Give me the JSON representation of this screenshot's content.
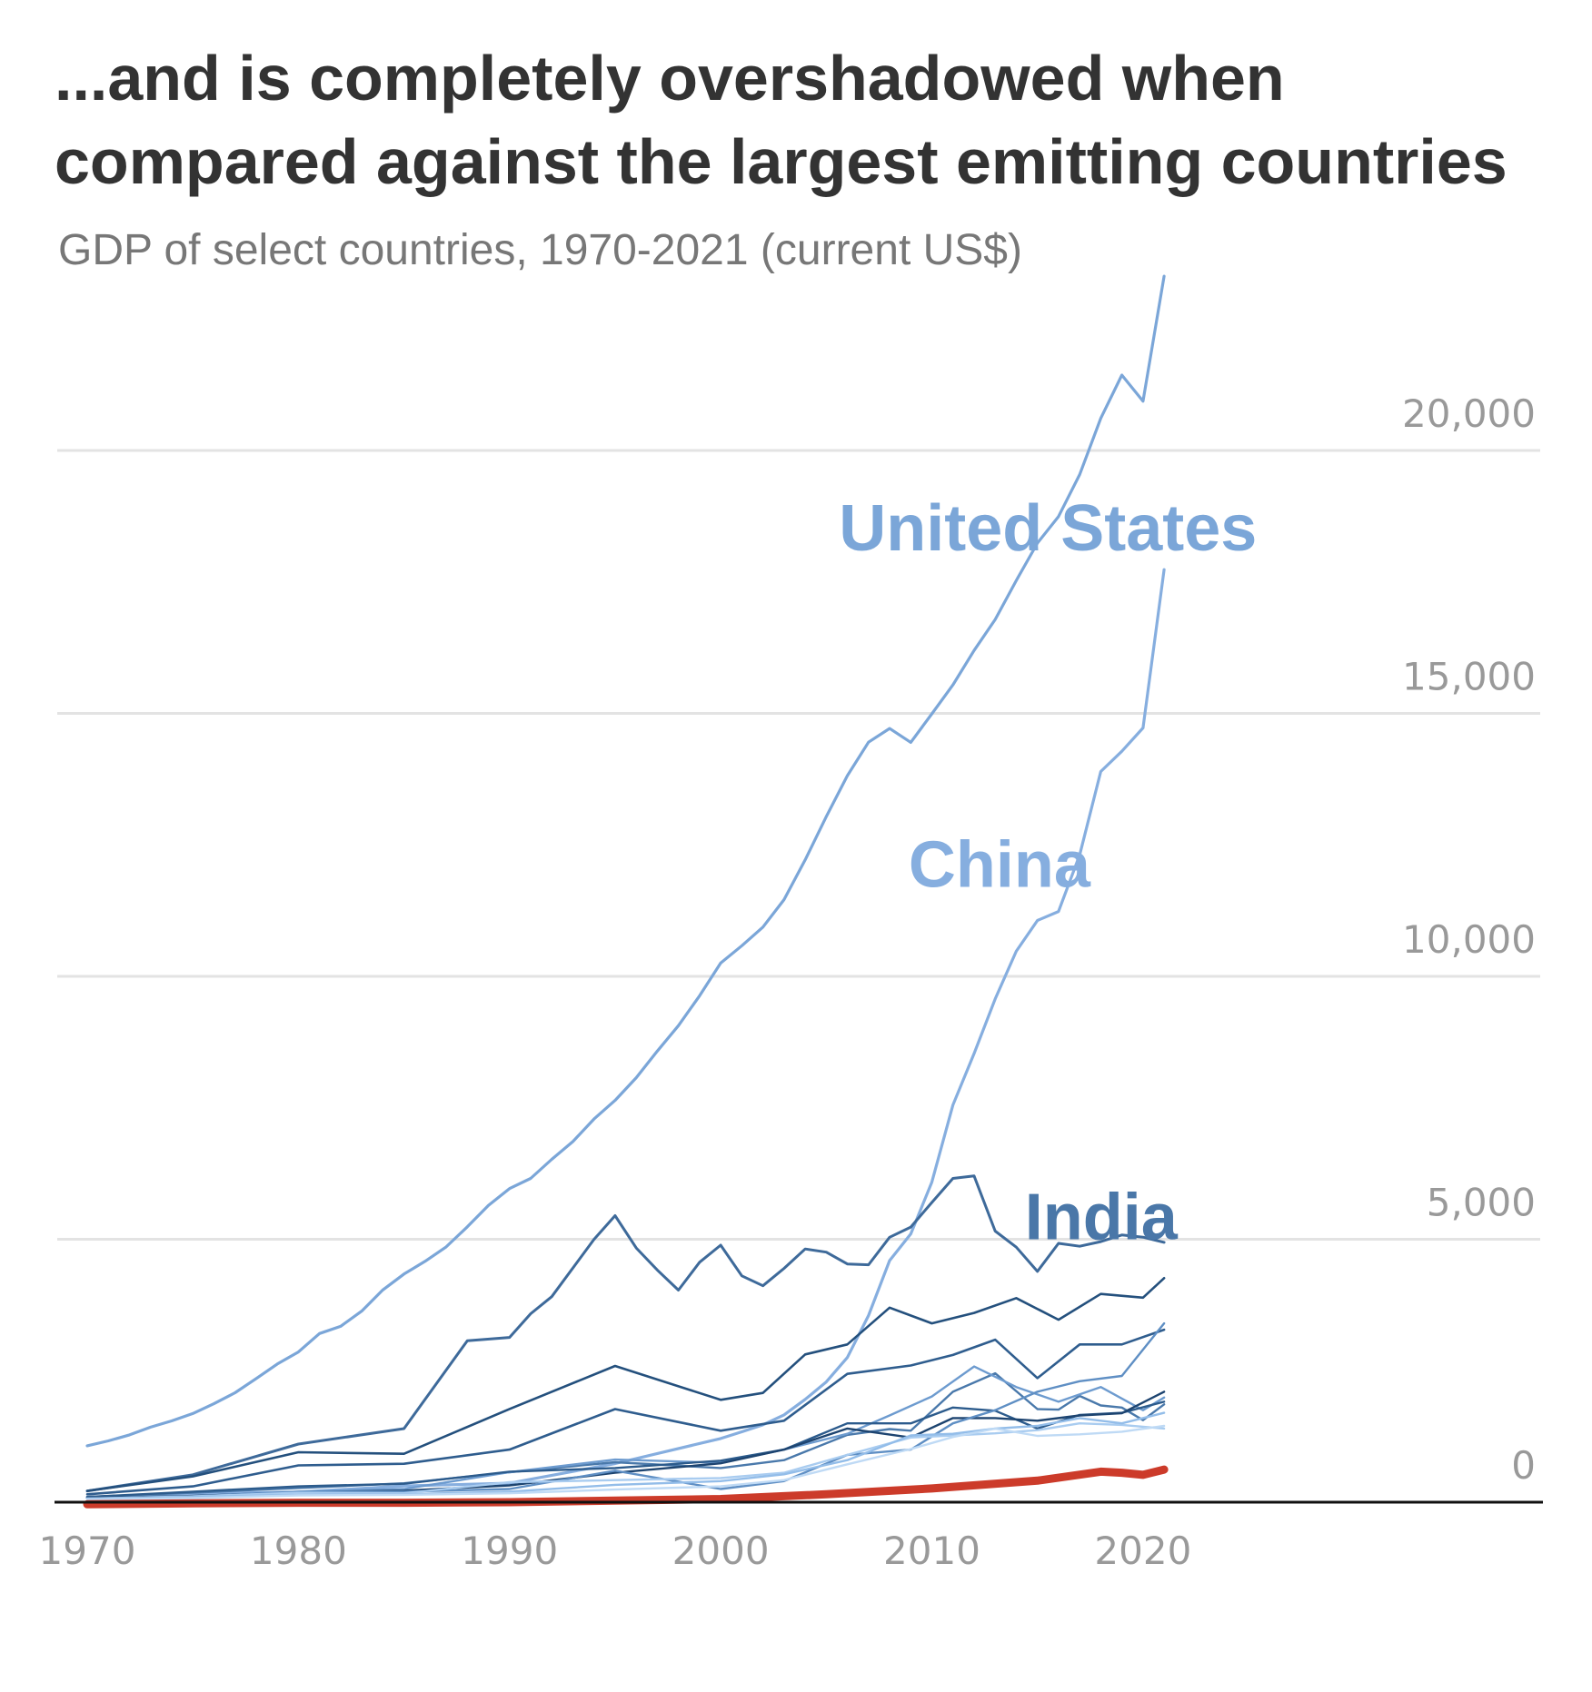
{
  "chart_data": {
    "type": "line",
    "title": "...and is completely overshadowed when compared against the largest emitting countries",
    "subtitle": "GDP of select countries, 1970-2021 (current US$)",
    "xlim": [
      1969,
      2029
    ],
    "ylim": [
      -700,
      23000
    ],
    "x_ticks": [
      1970,
      1980,
      1990,
      2000,
      2010,
      2020
    ],
    "x_tick_labels": [
      "1970",
      "1980",
      "1990",
      "2000",
      "2010",
      "2020"
    ],
    "y_ticks": [
      0,
      5000,
      10000,
      15000,
      20000
    ],
    "y_tick_labels": [
      "0",
      "5,000",
      "10,000",
      "15,000",
      "20,000"
    ],
    "grid": true,
    "labeled_series": [
      {
        "label": "United States",
        "color": "#7ba6d8",
        "text_x": 2005.6,
        "text_y": 18100
      },
      {
        "label": "China",
        "color": "#86aedf",
        "text_x": 2008.9,
        "text_y": 11700
      },
      {
        "label": "India",
        "color": "#4a77a8",
        "text_x": 2014.4,
        "text_y": 5000
      }
    ],
    "series": [
      {
        "color": "#7ba6d8",
        "width": 3.2,
        "x": [
          1970,
          1971,
          1972,
          1973,
          1974,
          1975,
          1976,
          1977,
          1978,
          1979,
          1980,
          1981,
          1982,
          1983,
          1984,
          1985,
          1986,
          1987,
          1988,
          1989,
          1990,
          1991,
          1992,
          1993,
          1994,
          1995,
          1996,
          1997,
          1998,
          1999,
          2000,
          2001,
          2002,
          2003,
          2004,
          2005,
          2006,
          2007,
          2008,
          2009,
          2010,
          2011,
          2012,
          2013,
          2014,
          2015,
          2016,
          2017,
          2018,
          2019,
          2020,
          2021
        ],
        "y": [
          1073,
          1165,
          1280,
          1426,
          1545,
          1685,
          1873,
          2081,
          2351,
          2627,
          2857,
          3207,
          3344,
          3634,
          4037,
          4339,
          4580,
          4855,
          5236,
          5642,
          5963,
          6158,
          6520,
          6859,
          7287,
          7640,
          8073,
          8578,
          9063,
          9631,
          10252,
          10582,
          10936,
          11458,
          12214,
          13037,
          13815,
          14452,
          14713,
          14449,
          14992,
          15543,
          16197,
          16785,
          17527,
          18238,
          18745,
          19543,
          20612,
          21433,
          20937,
          23315
        ]
      },
      {
        "color": "#86aedf",
        "width": 3.2,
        "x": [
          1970,
          1975,
          1980,
          1985,
          1990,
          1995,
          2000,
          2001,
          2002,
          2003,
          2004,
          2005,
          2006,
          2007,
          2008,
          2009,
          2010,
          2011,
          2012,
          2013,
          2014,
          2015,
          2016,
          2017,
          2018,
          2019,
          2020,
          2021
        ],
        "y": [
          93,
          164,
          191,
          309,
          361,
          734,
          1211,
          1339,
          1471,
          1660,
          1955,
          2286,
          2752,
          3550,
          4594,
          5102,
          6087,
          7552,
          8532,
          9570,
          10476,
          11062,
          11233,
          12310,
          13895,
          14280,
          14723,
          17734
        ]
      },
      {
        "color": "#3e6a9a",
        "width": 3.0,
        "x": [
          1970,
          1975,
          1980,
          1985,
          1988,
          1990,
          1991,
          1992,
          1993,
          1994,
          1995,
          1996,
          1997,
          1998,
          1999,
          2000,
          2001,
          2002,
          2003,
          2004,
          2005,
          2006,
          2007,
          2008,
          2009,
          2010,
          2011,
          2012,
          2013,
          2014,
          2015,
          2016,
          2017,
          2018,
          2019,
          2020,
          2021
        ],
        "y": [
          213,
          522,
          1105,
          1399,
          3071,
          3133,
          3584,
          3909,
          4454,
          4999,
          5449,
          4834,
          4415,
          4032,
          4563,
          4888,
          4304,
          4115,
          4446,
          4815,
          4755,
          4530,
          4515,
          5038,
          5231,
          5700,
          6157,
          6203,
          5155,
          4850,
          4389,
          4923,
          4867,
          4955,
          5082,
          5040,
          4941
        ]
      },
      {
        "color": "#24507d",
        "width": 2.6,
        "x": [
          1970,
          1975,
          1980,
          1985,
          1990,
          1995,
          2000,
          2002,
          2004,
          2006,
          2008,
          2010,
          2012,
          2014,
          2016,
          2018,
          2020,
          2021
        ],
        "y": [
          215,
          490,
          950,
          920,
          1772,
          2590,
          1947,
          2078,
          2810,
          3000,
          3700,
          3400,
          3600,
          3880,
          3470,
          3960,
          3890,
          4260
        ]
      },
      {
        "color": "#2f5d8e",
        "width": 2.6,
        "x": [
          1970,
          1975,
          1980,
          1985,
          1990,
          1995,
          2000,
          2003,
          2006,
          2009,
          2011,
          2013,
          2015,
          2017,
          2019,
          2021
        ],
        "y": [
          150,
          300,
          700,
          730,
          1000,
          1770,
          1360,
          1550,
          2440,
          2600,
          2800,
          3090,
          2360,
          3000,
          3000,
          3280
        ]
      },
      {
        "color": "#4a79ab",
        "width": 2.4,
        "x": [
          1970,
          1975,
          1980,
          1985,
          1990,
          1995,
          2000,
          2003,
          2006,
          2008,
          2009,
          2011,
          2013,
          2015,
          2016,
          2017,
          2018,
          2019,
          2020,
          2021
        ],
        "y": [
          100,
          180,
          270,
          360,
          570,
          760,
          650,
          800,
          1280,
          1390,
          1360,
          2100,
          2450,
          1770,
          1760,
          2020,
          1840,
          1800,
          1560,
          1860
        ]
      },
      {
        "color": "#6d9bcf",
        "width": 2.4,
        "x": [
          1970,
          1975,
          1980,
          1985,
          1990,
          1995,
          2000,
          2003,
          2006,
          2008,
          2010,
          2012,
          2014,
          2016,
          2018,
          2020,
          2021
        ],
        "y": [
          75,
          120,
          200,
          250,
          570,
          810,
          750,
          1000,
          1300,
          1650,
          2010,
          2580,
          2190,
          1910,
          2190,
          1750,
          1990
        ]
      },
      {
        "color": "#2c5b8c",
        "width": 2.4,
        "x": [
          1970,
          1975,
          1980,
          1985,
          1990,
          1995,
          2000,
          2003,
          2006,
          2009,
          2011,
          2013,
          2015,
          2017,
          2019,
          2021
        ],
        "y": [
          100,
          200,
          300,
          350,
          580,
          650,
          790,
          1000,
          1500,
          1500,
          1800,
          1740,
          1400,
          1660,
          1700,
          1910
        ]
      },
      {
        "color": "#1d4470",
        "width": 2.4,
        "x": [
          1970,
          1975,
          1980,
          1985,
          1990,
          1995,
          2000,
          2003,
          2006,
          2009,
          2011,
          2013,
          2015,
          2017,
          2019,
          2021
        ],
        "y": [
          80,
          120,
          190,
          220,
          320,
          560,
          740,
          1000,
          1400,
          1230,
          1600,
          1600,
          1550,
          1650,
          1690,
          2100
        ]
      },
      {
        "color": "#5f8fc4",
        "width": 2.4,
        "x": [
          1970,
          1975,
          1980,
          1985,
          1990,
          1995,
          2000,
          2003,
          2006,
          2009,
          2011,
          2013,
          2015,
          2017,
          2019,
          2021
        ],
        "y": [
          70,
          110,
          200,
          200,
          250,
          600,
          250,
          400,
          900,
          1000,
          1500,
          1750,
          2100,
          2300,
          2400,
          3400
        ]
      },
      {
        "color": "#a9ccf0",
        "width": 2.4,
        "x": [
          1970,
          1975,
          1980,
          1985,
          1990,
          1995,
          2000,
          2003,
          2006,
          2009,
          2011,
          2013,
          2015,
          2017,
          2019,
          2021
        ],
        "y": [
          70,
          110,
          180,
          170,
          380,
          420,
          460,
          560,
          900,
          1230,
          1270,
          1310,
          1370,
          1500,
          1470,
          1400
        ]
      },
      {
        "color": "#93bde9",
        "width": 2.4,
        "x": [
          1970,
          1975,
          1980,
          1985,
          1990,
          1995,
          2000,
          2003,
          2006,
          2009,
          2011,
          2013,
          2015,
          2017,
          2019,
          2021
        ],
        "y": [
          60,
          100,
          140,
          150,
          200,
          330,
          400,
          530,
          800,
          1270,
          1300,
          1400,
          1450,
          1600,
          1500,
          1700
        ]
      },
      {
        "color": "#bfdaf5",
        "width": 2.4,
        "x": [
          1970,
          1975,
          1980,
          1985,
          1990,
          1995,
          2000,
          2003,
          2006,
          2009,
          2011,
          2013,
          2015,
          2017,
          2019,
          2021
        ],
        "y": [
          50,
          80,
          130,
          140,
          170,
          240,
          300,
          420,
          720,
          1010,
          1240,
          1400,
          1260,
          1290,
          1340,
          1450
        ]
      },
      {
        "color": "#cc3b2a",
        "width": 9,
        "x": [
          1970,
          1975,
          1980,
          1985,
          1990,
          1995,
          2000,
          2005,
          2010,
          2015,
          2018,
          2019,
          2020,
          2021
        ],
        "y": [
          -40,
          -20,
          -10,
          -10,
          0,
          30,
          60,
          150,
          260,
          410,
          580,
          560,
          520,
          620
        ]
      }
    ]
  }
}
